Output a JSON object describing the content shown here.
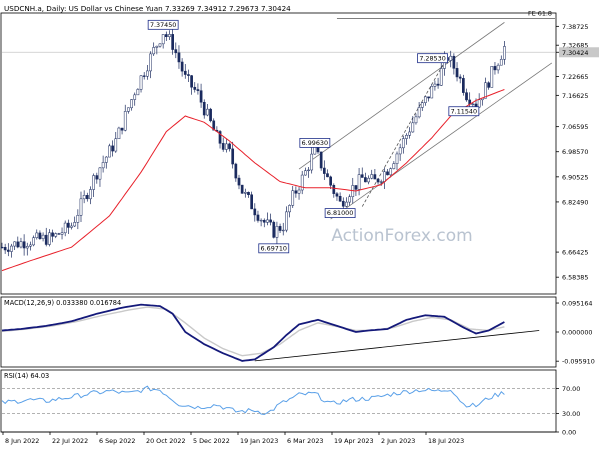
{
  "header": {
    "symbol_text": "USDCNH.a, Daily:  US Dollar vs Chinese Yuan  7.33269 7.34912 7.29673 7.30424"
  },
  "watermark": "ActionForex.com",
  "colors": {
    "candle": "#1a2a5e",
    "ema": "#e8202a",
    "macd_main": "#14197a",
    "macd_signal": "#c9c9c9",
    "rsi": "#5aa0e8",
    "trendline": "#7a7a7a",
    "label_border": "#1f2f8a",
    "axis": "#000000"
  },
  "chart_data": [
    {
      "type": "line",
      "title": "USDCNH.a, Daily:  US Dollar vs Chinese Yuan  7.33269 7.34912 7.29673 7.30424",
      "x_tick_labels": [
        "8 Jun 2022",
        "22 Jul 2022",
        "6 Sep 2022",
        "20 Oct 2022",
        "5 Dec 2022",
        "19 Jan 2023",
        "6 Mar 2023",
        "19 Apr 2023",
        "2 Jun 2023",
        "18 Jul 2023"
      ],
      "ylim": [
        6.53,
        7.43
      ],
      "y_ticks": [
        7.38725,
        7.32685,
        7.30424,
        7.22665,
        7.16625,
        7.06595,
        6.9857,
        6.90525,
        6.8249,
        6.66425,
        6.58385
      ],
      "y_tick_labels": [
        "7.38725",
        "7.32685",
        "7.30424",
        "7.22665",
        "7.16625",
        "7.06595",
        "6.98570",
        "6.90525",
        "6.82490",
        "6.66425",
        "6.58385"
      ],
      "current_price": 7.30424,
      "price_keypoints": [
        [
          0,
          6.68
        ],
        [
          8,
          6.7
        ],
        [
          16,
          6.71
        ],
        [
          22,
          6.75
        ],
        [
          30,
          6.92
        ],
        [
          36,
          7.02
        ],
        [
          42,
          7.18
        ],
        [
          48,
          7.31
        ],
        [
          51,
          7.37
        ],
        [
          54,
          7.33
        ],
        [
          58,
          7.22
        ],
        [
          62,
          7.17
        ],
        [
          68,
          7.03
        ],
        [
          72,
          6.98
        ],
        [
          76,
          6.86
        ],
        [
          80,
          6.8
        ],
        [
          83,
          6.76
        ],
        [
          86,
          6.73
        ],
        [
          89,
          6.75
        ],
        [
          92,
          6.84
        ],
        [
          96,
          6.92
        ],
        [
          99,
          6.99
        ],
        [
          103,
          6.9
        ],
        [
          107,
          6.82
        ],
        [
          110,
          6.86
        ],
        [
          114,
          6.9
        ],
        [
          118,
          6.89
        ],
        [
          122,
          6.93
        ],
        [
          126,
          7.0
        ],
        [
          130,
          7.08
        ],
        [
          134,
          7.15
        ],
        [
          138,
          7.22
        ],
        [
          141,
          7.29
        ],
        [
          144,
          7.24
        ],
        [
          147,
          7.17
        ],
        [
          150,
          7.14
        ],
        [
          153,
          7.19
        ],
        [
          156,
          7.26
        ],
        [
          159,
          7.32
        ]
      ],
      "ema_keypoints": [
        [
          0,
          6.605
        ],
        [
          10,
          6.64
        ],
        [
          22,
          6.68
        ],
        [
          34,
          6.78
        ],
        [
          44,
          6.92
        ],
        [
          52,
          7.05
        ],
        [
          58,
          7.1
        ],
        [
          64,
          7.08
        ],
        [
          72,
          7.02
        ],
        [
          80,
          6.95
        ],
        [
          88,
          6.89
        ],
        [
          96,
          6.87
        ],
        [
          104,
          6.87
        ],
        [
          112,
          6.86
        ],
        [
          120,
          6.88
        ],
        [
          128,
          6.95
        ],
        [
          136,
          7.03
        ],
        [
          142,
          7.1
        ],
        [
          150,
          7.15
        ],
        [
          159,
          7.185
        ]
      ],
      "series": [
        {
          "name": "USDCNH.a"
        },
        {
          "name": "FE 61.8",
          "level": 7.412
        }
      ],
      "annotations": [
        {
          "text": "7.37450",
          "value": 7.3745,
          "at_bar": 51
        },
        {
          "text": "6.69710",
          "value": 6.6971,
          "at_bar": 86
        },
        {
          "text": "6.99630",
          "value": 6.9963,
          "at_bar": 99
        },
        {
          "text": "6.81000",
          "value": 6.81,
          "at_bar": 107
        },
        {
          "text": "7.28530",
          "value": 7.2853,
          "at_bar": 141
        },
        {
          "text": "7.11540",
          "value": 7.1154,
          "at_bar": 149
        },
        {
          "text": "FE 61.8",
          "value": 7.412
        }
      ],
      "channel": {
        "upper": [
          [
            94,
            6.93
          ],
          [
            159,
            7.4
          ]
        ],
        "lower": [
          [
            104,
            6.77
          ],
          [
            174,
            7.27
          ]
        ],
        "dashed": [
          [
            114,
            6.81
          ],
          [
            141,
            7.29
          ]
        ]
      }
    },
    {
      "type": "line",
      "title": "MACD(12,26,9) 0.033380 0.016784",
      "ylim": [
        -0.115,
        0.115
      ],
      "y_ticks": [
        0.095164,
        0.0,
        -0.09591
      ],
      "y_tick_labels": [
        "0.095164",
        "0.000000",
        "-0.095910"
      ],
      "macd_keypoints": [
        [
          0,
          0.005
        ],
        [
          6,
          0.01
        ],
        [
          14,
          0.02
        ],
        [
          22,
          0.035
        ],
        [
          30,
          0.06
        ],
        [
          38,
          0.08
        ],
        [
          44,
          0.09
        ],
        [
          50,
          0.085
        ],
        [
          54,
          0.06
        ],
        [
          58,
          0.0
        ],
        [
          64,
          -0.04
        ],
        [
          70,
          -0.07
        ],
        [
          76,
          -0.095
        ],
        [
          80,
          -0.09
        ],
        [
          86,
          -0.05
        ],
        [
          90,
          -0.01
        ],
        [
          94,
          0.025
        ],
        [
          100,
          0.04
        ],
        [
          106,
          0.02
        ],
        [
          112,
          0.0
        ],
        [
          116,
          0.005
        ],
        [
          122,
          0.01
        ],
        [
          128,
          0.04
        ],
        [
          134,
          0.055
        ],
        [
          140,
          0.05
        ],
        [
          146,
          0.015
        ],
        [
          150,
          -0.005
        ],
        [
          154,
          0.005
        ],
        [
          159,
          0.033
        ]
      ],
      "signal_keypoints": [
        [
          0,
          0.002
        ],
        [
          8,
          0.01
        ],
        [
          16,
          0.02
        ],
        [
          24,
          0.035
        ],
        [
          32,
          0.055
        ],
        [
          40,
          0.072
        ],
        [
          46,
          0.082
        ],
        [
          52,
          0.075
        ],
        [
          58,
          0.03
        ],
        [
          64,
          -0.02
        ],
        [
          70,
          -0.055
        ],
        [
          76,
          -0.078
        ],
        [
          82,
          -0.07
        ],
        [
          88,
          -0.04
        ],
        [
          94,
          0.005
        ],
        [
          100,
          0.03
        ],
        [
          106,
          0.018
        ],
        [
          112,
          0.005
        ],
        [
          118,
          0.006
        ],
        [
          124,
          0.015
        ],
        [
          130,
          0.035
        ],
        [
          136,
          0.048
        ],
        [
          142,
          0.04
        ],
        [
          148,
          0.01
        ],
        [
          154,
          0.005
        ],
        [
          159,
          0.017
        ]
      ],
      "trendline": [
        [
          80,
          -0.095
        ],
        [
          170,
          0.005
        ]
      ]
    },
    {
      "type": "line",
      "title": "RSI(14) 64.03",
      "ylim": [
        0,
        100
      ],
      "y_ticks": [
        70,
        30,
        0
      ],
      "y_tick_labels": [
        "70.00",
        "30.00",
        "0.00"
      ],
      "dashed_levels": [
        70,
        30
      ],
      "rsi_keypoints": [
        [
          0,
          47
        ],
        [
          8,
          52
        ],
        [
          14,
          50
        ],
        [
          20,
          55
        ],
        [
          28,
          62
        ],
        [
          34,
          66
        ],
        [
          40,
          62
        ],
        [
          46,
          70
        ],
        [
          50,
          68
        ],
        [
          56,
          45
        ],
        [
          62,
          40
        ],
        [
          68,
          44
        ],
        [
          74,
          33
        ],
        [
          80,
          35
        ],
        [
          84,
          30
        ],
        [
          88,
          45
        ],
        [
          94,
          60
        ],
        [
          99,
          62
        ],
        [
          104,
          45
        ],
        [
          110,
          52
        ],
        [
          118,
          55
        ],
        [
          124,
          62
        ],
        [
          132,
          68
        ],
        [
          138,
          66
        ],
        [
          142,
          70
        ],
        [
          146,
          45
        ],
        [
          150,
          42
        ],
        [
          154,
          55
        ],
        [
          159,
          64
        ]
      ]
    }
  ]
}
